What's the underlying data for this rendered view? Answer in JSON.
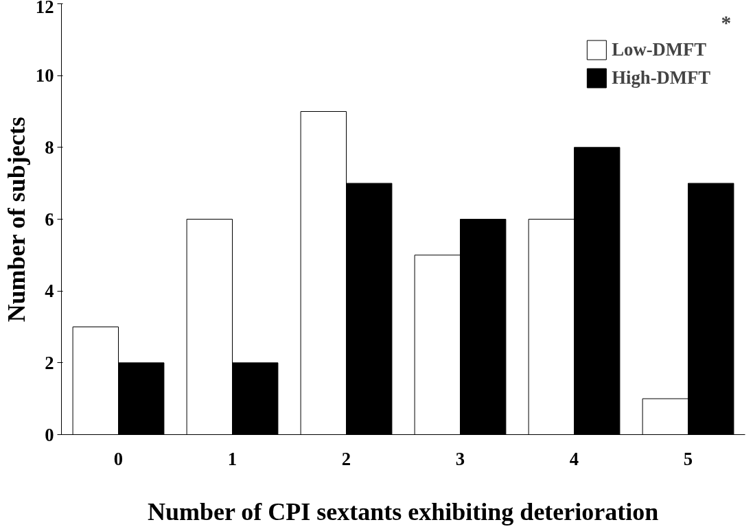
{
  "chart_data": {
    "type": "bar",
    "xlabel": "Number of CPI sextants exhibiting deterioration",
    "ylabel": "Number of subjects",
    "categories": [
      "0",
      "1",
      "2",
      "3",
      "4",
      "5"
    ],
    "series": [
      {
        "name": "Low-DMFT",
        "color": "#ffffff",
        "values": [
          3,
          6,
          9,
          5,
          6,
          1
        ]
      },
      {
        "name": "High-DMFT",
        "color": "#000000",
        "values": [
          2,
          2,
          7,
          6,
          8,
          7
        ]
      }
    ],
    "ylim": [
      0,
      12
    ],
    "yticks": [
      0,
      2,
      4,
      6,
      8,
      10,
      12
    ],
    "grid": false,
    "legend": "top right",
    "annotations": [
      "*"
    ]
  }
}
